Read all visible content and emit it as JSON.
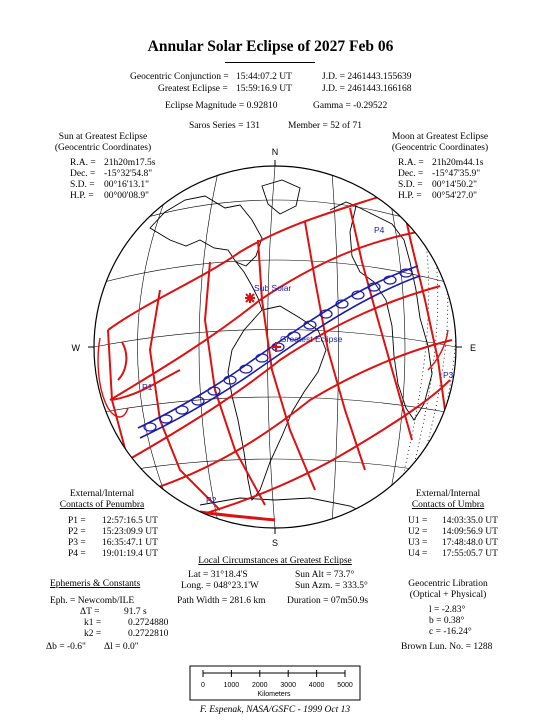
{
  "title": "Annular Solar Eclipse of 2027 Feb 06",
  "header": {
    "conjunction_label": "Geocentric Conjunction =",
    "conjunction_time": "15:44:07.2 UT",
    "conjunction_jd": "J.D. = 2461443.155639",
    "greatest_label": "Greatest Eclipse =",
    "greatest_time": "15:59:16.9 UT",
    "greatest_jd": "J.D. = 2461443.166168",
    "magnitude": "Eclipse Magnitude = 0.92810",
    "gamma": "Gamma = -0.29522",
    "saros": "Saros Series = 131",
    "member": "Member = 52 of 71"
  },
  "sun": {
    "heading1": "Sun at Greatest Eclipse",
    "heading2": "(Geocentric Coordinates)",
    "rows": [
      {
        "label": "R.A. =",
        "value": "21h20m17.5s"
      },
      {
        "label": "Dec. =",
        "value": "-15°32'54.8\""
      },
      {
        "label": "S.D. =",
        "value": "00°16'13.1\""
      },
      {
        "label": "H.P. =",
        "value": "00°00'08.9\""
      }
    ]
  },
  "moon": {
    "heading1": "Moon at Greatest Eclipse",
    "heading2": "(Geocentric Coordinates)",
    "rows": [
      {
        "label": "R.A. =",
        "value": "21h20m44.1s"
      },
      {
        "label": "Dec. =",
        "value": "-15°47'35.9\""
      },
      {
        "label": "S.D. =",
        "value": "00°14'50.2\""
      },
      {
        "label": "H.P. =",
        "value": "00°54'27.0\""
      }
    ]
  },
  "compass": {
    "n": "N",
    "s": "S",
    "e": "E",
    "w": "W"
  },
  "map_labels": {
    "sub_solar": "Sub Solar",
    "greatest": "Greatest Eclipse",
    "p1": "P1",
    "p2": "P2",
    "p3": "P3",
    "p4": "P4"
  },
  "penumbra": {
    "heading1": "External/Internal",
    "heading2": "Contacts of Penumbra",
    "rows": [
      {
        "label": "P1 =",
        "value": "12:57:16.5 UT"
      },
      {
        "label": "P2 =",
        "value": "15:23:09.9 UT"
      },
      {
        "label": "P3 =",
        "value": "16:35:47.1 UT"
      },
      {
        "label": "P4 =",
        "value": "19:01:19.4 UT"
      }
    ]
  },
  "umbra": {
    "heading1": "External/Internal",
    "heading2": "Contacts of Umbra",
    "rows": [
      {
        "label": "U1 =",
        "value": "14:03:35.0 UT"
      },
      {
        "label": "U2 =",
        "value": "14:09:56.9 UT"
      },
      {
        "label": "U3 =",
        "value": "17:48:48.0 UT"
      },
      {
        "label": "U4 =",
        "value": "17:55:05.7 UT"
      }
    ]
  },
  "local": {
    "heading": "Local Circumstances at Greatest Eclipse",
    "lat": "Lat = 31°18.4'S",
    "long": "Long. = 048°23.1'W",
    "path_width": "Path Width = 281.6 km",
    "sun_alt": "Sun Alt = 73.7°",
    "sun_azm": "Sun Azm. = 333.5°",
    "duration": "Duration = 07m50.9s"
  },
  "ephemeris": {
    "heading": "Ephemeris & Constants",
    "eph": "Eph. = Newcomb/ILE",
    "dt_label": "ΔT =",
    "dt_value": "91.7 s",
    "k1_label": "k1 =",
    "k1_value": "0.2724880",
    "k2_label": "k2 =",
    "k2_value": "0.2722810",
    "db": "Δb = -0.6\"",
    "dl": "Δl = 0.0\""
  },
  "libration": {
    "heading1": "Geocentric Libration",
    "heading2": "(Optical + Physical)",
    "l": "l = -2.83°",
    "b": "b = 0.38°",
    "c": "c = -16.24°",
    "brown": "Brown Lun. No. = 1288"
  },
  "scale": {
    "ticks": [
      "0",
      "1000",
      "2000",
      "3000",
      "4000",
      "5000"
    ],
    "unit": "Kilometers"
  },
  "credit": "F. Espenak, NASA/GSFC - 1999 Oct 13",
  "colors": {
    "curves": "#dd1111",
    "path": "#1a1aaa",
    "land": "#000000"
  }
}
